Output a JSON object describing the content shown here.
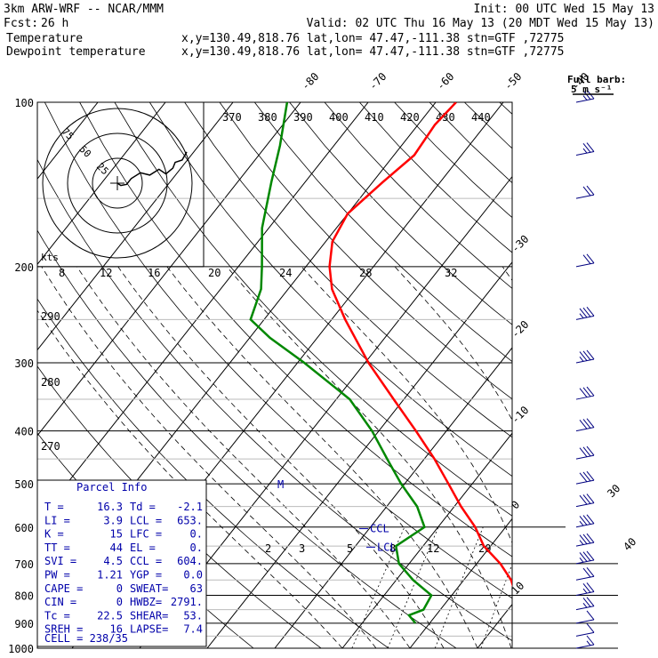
{
  "header": {
    "title": "3km ARW-WRF -- NCAR/MMM",
    "init": "Init: 00 UTC Wed 15 May 13",
    "fcst_label": "Fcst:",
    "fcst_value": "26 h",
    "valid": "Valid: 02 UTC Thu 16 May 13 (20 MDT Wed 15 May 13)",
    "temp_label": "Temperature",
    "dew_label": "Dewpoint temperature",
    "temp_info": "x,y=130.49,818.76   lat,lon= 47.47,-111.38  stn=GTF ,72775",
    "dew_info": "x,y=130.49,818.76   lat,lon= 47.47,-111.38  stn=GTF ,72775",
    "full_barb_1": "Full barb:",
    "full_barb_2": "5 m s⁻¹"
  },
  "colors": {
    "temperature": "#ff0000",
    "dewpoint": "#008800",
    "parcel": "#0000aa",
    "barbs": "#000080"
  },
  "chart_data": {
    "type": "skew-t",
    "ylabel_ticks": [
      "100",
      "200",
      "300",
      "400",
      "500",
      "600",
      "700",
      "800",
      "900",
      "1000"
    ],
    "pressure_levels_hpa": [
      100,
      200,
      300,
      400,
      500,
      600,
      700,
      800,
      900,
      1000
    ],
    "isotherm_labels": [
      {
        "value": "-80"
      },
      {
        "value": "-70"
      },
      {
        "value": "-60"
      },
      {
        "value": "-50"
      },
      {
        "value": "-40"
      },
      {
        "value": "-30"
      },
      {
        "value": "-20"
      },
      {
        "value": "-10"
      },
      {
        "value": "0"
      },
      {
        "value": "10"
      },
      {
        "value": "20"
      },
      {
        "value": "30"
      },
      {
        "value": "40"
      }
    ],
    "theta_labels": [
      "370",
      "380",
      "390",
      "400",
      "410",
      "420",
      "430",
      "440"
    ],
    "theta_side_labels": [
      "290",
      "280",
      "270"
    ],
    "mixing_ratio_labels": [
      "2",
      "3",
      "5",
      "8",
      "12",
      "20"
    ],
    "upper_mixing_labels": [
      "8",
      "12",
      "16",
      "20",
      "24",
      "28",
      "32"
    ],
    "temperature_profile": [
      {
        "p": 900,
        "t": 16.3
      },
      {
        "p": 850,
        "t": 12.5
      },
      {
        "p": 800,
        "t": 9.5
      },
      {
        "p": 750,
        "t": 7.0
      },
      {
        "p": 700,
        "t": 3.5
      },
      {
        "p": 650,
        "t": -1.0
      },
      {
        "p": 600,
        "t": -4.5
      },
      {
        "p": 550,
        "t": -9.0
      },
      {
        "p": 500,
        "t": -13.5
      },
      {
        "p": 450,
        "t": -18.5
      },
      {
        "p": 400,
        "t": -24.5
      },
      {
        "p": 350,
        "t": -31.5
      },
      {
        "p": 300,
        "t": -39.5
      },
      {
        "p": 250,
        "t": -48.0
      },
      {
        "p": 220,
        "t": -53.5
      },
      {
        "p": 200,
        "t": -56.5
      },
      {
        "p": 180,
        "t": -59.0
      },
      {
        "p": 160,
        "t": -60.0
      },
      {
        "p": 140,
        "t": -58.5
      },
      {
        "p": 125,
        "t": -57.0
      },
      {
        "p": 110,
        "t": -57.5
      },
      {
        "p": 100,
        "t": -57.0
      }
    ],
    "dewpoint_profile": [
      {
        "p": 900,
        "t": -2.1
      },
      {
        "p": 870,
        "t": -4.0
      },
      {
        "p": 850,
        "t": -2.5
      },
      {
        "p": 800,
        "t": -3.0
      },
      {
        "p": 750,
        "t": -7.5
      },
      {
        "p": 700,
        "t": -11.5
      },
      {
        "p": 650,
        "t": -14.0
      },
      {
        "p": 600,
        "t": -12.0
      },
      {
        "p": 550,
        "t": -15.5
      },
      {
        "p": 500,
        "t": -20.5
      },
      {
        "p": 450,
        "t": -25.5
      },
      {
        "p": 400,
        "t": -31.0
      },
      {
        "p": 350,
        "t": -38.0
      },
      {
        "p": 300,
        "t": -49.0
      },
      {
        "p": 270,
        "t": -57.0
      },
      {
        "p": 250,
        "t": -62.0
      },
      {
        "p": 220,
        "t": -64.0
      },
      {
        "p": 200,
        "t": -66.5
      },
      {
        "p": 170,
        "t": -71.0
      },
      {
        "p": 140,
        "t": -75.0
      },
      {
        "p": 120,
        "t": -78.0
      },
      {
        "p": 100,
        "t": -82.0
      }
    ],
    "markers": [
      {
        "label": "CCL",
        "p": 604
      },
      {
        "label": "LCL",
        "p": 653
      },
      {
        "label": "M",
        "p": 505
      }
    ],
    "hodograph": {
      "ring_labels": [
        "25",
        "50",
        "75"
      ],
      "units_label": "kts",
      "trace": [
        [
          0,
          0
        ],
        [
          3,
          2
        ],
        [
          8,
          1
        ],
        [
          12,
          -4
        ],
        [
          20,
          -9
        ],
        [
          28,
          -7
        ],
        [
          36,
          -12
        ],
        [
          42,
          -8
        ],
        [
          48,
          -13
        ],
        [
          50,
          -18
        ],
        [
          56,
          -20
        ],
        [
          60,
          -27
        ]
      ]
    },
    "wind_barbs_kt": [
      {
        "p": 1000,
        "speed": 5
      },
      {
        "p": 950,
        "speed": 10
      },
      {
        "p": 900,
        "speed": 10
      },
      {
        "p": 850,
        "speed": 15
      },
      {
        "p": 800,
        "speed": 15
      },
      {
        "p": 750,
        "speed": 20
      },
      {
        "p": 700,
        "speed": 25
      },
      {
        "p": 650,
        "speed": 25
      },
      {
        "p": 600,
        "speed": 25
      },
      {
        "p": 550,
        "speed": 30
      },
      {
        "p": 500,
        "speed": 30
      },
      {
        "p": 450,
        "speed": 30
      },
      {
        "p": 400,
        "speed": 30
      },
      {
        "p": 350,
        "speed": 30
      },
      {
        "p": 300,
        "speed": 25
      },
      {
        "p": 250,
        "speed": 25
      },
      {
        "p": 200,
        "speed": 20
      },
      {
        "p": 150,
        "speed": 20
      },
      {
        "p": 125,
        "speed": 15
      },
      {
        "p": 100,
        "speed": 15
      }
    ]
  },
  "parcel_info": {
    "title": "Parcel Info",
    "rows": [
      [
        "T  =",
        "16.3",
        "Td =",
        "-2.1"
      ],
      [
        "LI =",
        "3.9",
        "LCL =",
        "653."
      ],
      [
        "K  =",
        "15",
        "LFC =",
        "0."
      ],
      [
        "TT =",
        "44",
        "EL  =",
        "0."
      ],
      [
        "SVI =",
        "4.5",
        "CCL =",
        "604."
      ],
      [
        "PW =",
        "1.21",
        "YGP =",
        "0.0"
      ],
      [
        "CAPE =",
        "0",
        "SWEAT=",
        "63"
      ],
      [
        "CIN =",
        "0",
        "HWBZ=",
        "2791."
      ],
      [
        "Tc =",
        "22.5",
        "SHEAR=",
        "53."
      ],
      [
        "SREH =",
        "16",
        "LAPSE=",
        "7.4"
      ]
    ],
    "cell": "CELL = 238/35"
  }
}
